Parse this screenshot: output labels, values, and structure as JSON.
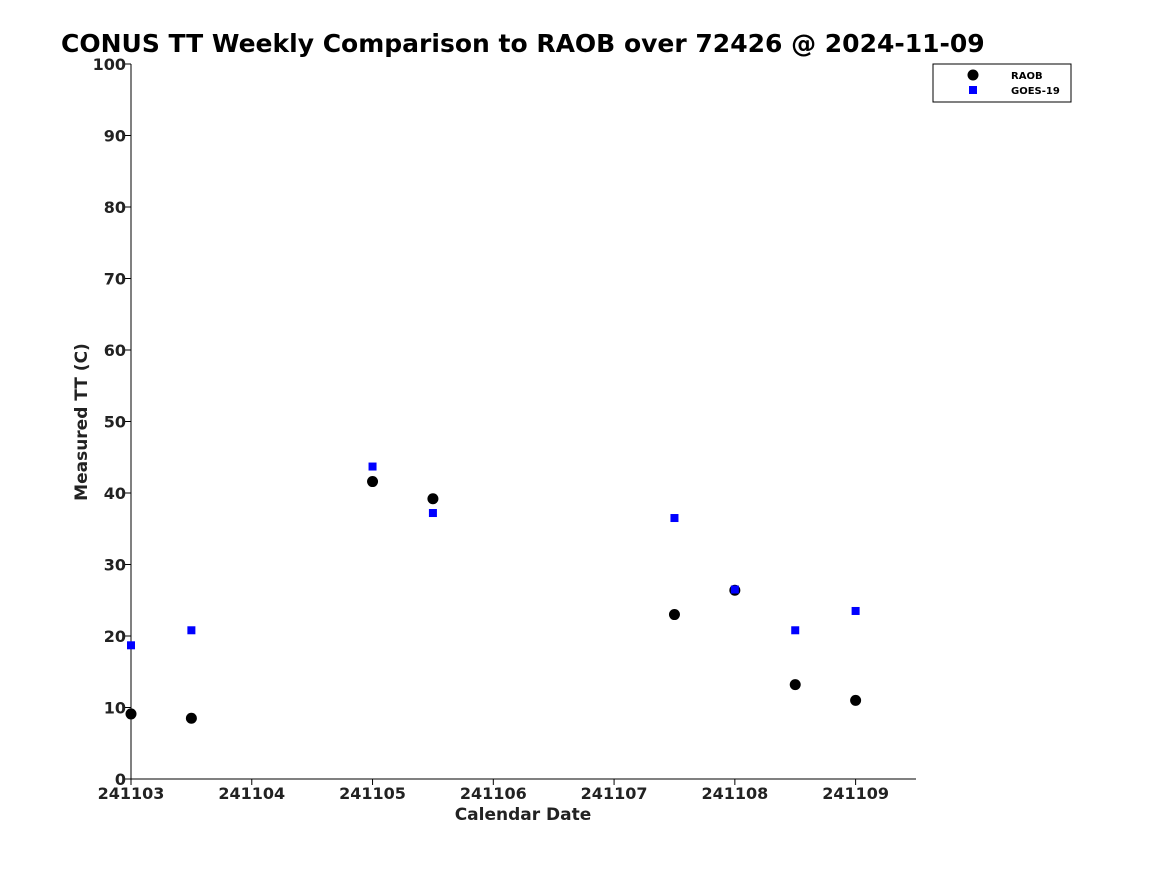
{
  "chart_data": {
    "type": "scatter",
    "title": "CONUS TT Weekly Comparison to RAOB over 72426 @ 2024-11-09",
    "xlabel": "Calendar Date",
    "ylabel": "Measured TT (C)",
    "xlim": [
      241103,
      241109.5
    ],
    "ylim": [
      0,
      100
    ],
    "xticks": [
      241103,
      241104,
      241105,
      241106,
      241107,
      241108,
      241109
    ],
    "yticks": [
      0,
      10,
      20,
      30,
      40,
      50,
      60,
      70,
      80,
      90,
      100
    ],
    "grid": false,
    "legend_position": "top-right",
    "series": [
      {
        "name": "RAOB",
        "marker": "circle",
        "color": "#000000",
        "points": [
          {
            "x": 241103.0,
            "y": 9.1
          },
          {
            "x": 241103.5,
            "y": 8.5
          },
          {
            "x": 241105.0,
            "y": 41.6
          },
          {
            "x": 241105.5,
            "y": 39.2
          },
          {
            "x": 241107.5,
            "y": 23.0
          },
          {
            "x": 241108.0,
            "y": 26.4
          },
          {
            "x": 241108.5,
            "y": 13.2
          },
          {
            "x": 241109.0,
            "y": 11.0
          }
        ]
      },
      {
        "name": "GOES-19",
        "marker": "square",
        "color": "#0000ff",
        "points": [
          {
            "x": 241103.0,
            "y": 18.7
          },
          {
            "x": 241103.5,
            "y": 20.8
          },
          {
            "x": 241105.0,
            "y": 43.7
          },
          {
            "x": 241105.5,
            "y": 37.2
          },
          {
            "x": 241107.5,
            "y": 36.5
          },
          {
            "x": 241108.0,
            "y": 26.5
          },
          {
            "x": 241108.5,
            "y": 20.8
          },
          {
            "x": 241109.0,
            "y": 23.5
          }
        ]
      }
    ]
  }
}
